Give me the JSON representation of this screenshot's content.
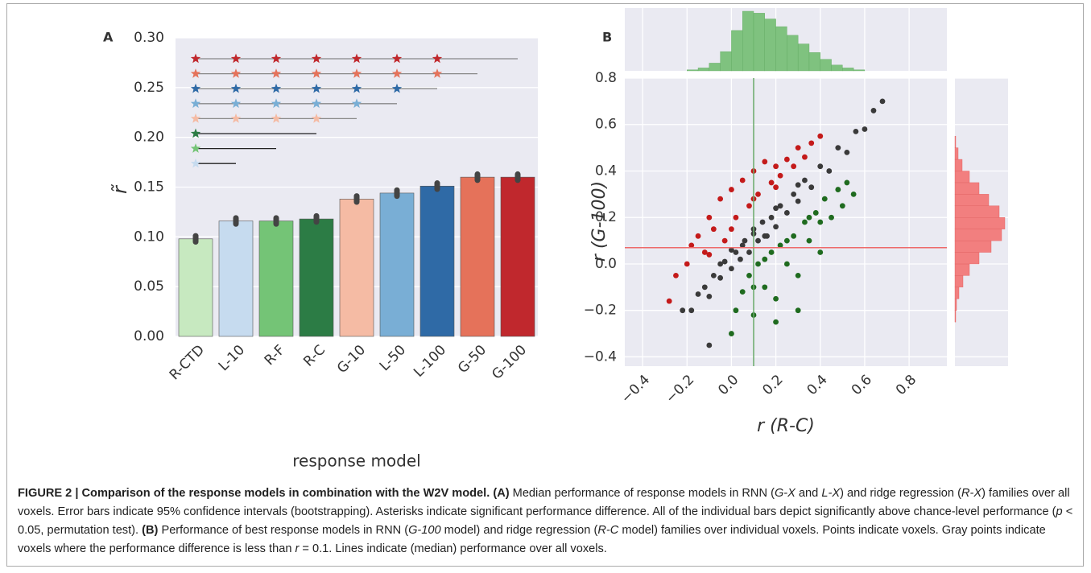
{
  "chart_data": [
    {
      "type": "bar",
      "panel_label": "A",
      "xlabel": "response model",
      "ylabel": "r̃",
      "categories": [
        "R-CTD",
        "L-10",
        "R-F",
        "R-C",
        "G-10",
        "L-50",
        "L-100",
        "G-50",
        "G-100"
      ],
      "values": [
        0.098,
        0.116,
        0.116,
        0.118,
        0.138,
        0.144,
        0.151,
        0.16,
        0.16
      ],
      "errors": [
        0.003,
        0.003,
        0.003,
        0.003,
        0.003,
        0.003,
        0.003,
        0.003,
        0.003
      ],
      "colors": [
        "#c7e9c0",
        "#c6dbef",
        "#74c476",
        "#2c7c45",
        "#f5bba4",
        "#79aed5",
        "#2f6aa6",
        "#e5725a",
        "#c0282d"
      ],
      "ylim": [
        0,
        0.3
      ],
      "yticks": [
        {
          "value": 0,
          "label": "0.00"
        },
        0.05,
        {
          "value": 0.1,
          "label": "0.10"
        },
        0.15,
        {
          "value": 0.2,
          "label": "0.20"
        },
        0.25,
        {
          "value": 0.3,
          "label": "0.30"
        }
      ],
      "grid": true
    },
    {
      "type": "scatter",
      "panel_label": "B",
      "xlabel": "r (R-C)",
      "ylabel": "r (G-100)",
      "series": [
        {
          "color": "#3a3a3a",
          "x": [
            -0.22,
            -0.18,
            -0.15,
            -0.12,
            -0.1,
            -0.08,
            -0.05,
            -0.03,
            0,
            0.02,
            0.04,
            0.06,
            0.08,
            0.1,
            0.12,
            0.14,
            0.16,
            0.18,
            0.2,
            0.22,
            0.25,
            0.28,
            0.3,
            0.33,
            0.36,
            0.4,
            0.44,
            0.48,
            0.52,
            0.56,
            0.6,
            0.64,
            0.68,
            0.05,
            0.1,
            0.15,
            0.2,
            0.0,
            -0.05,
            0.3,
            -0.1
          ],
          "values": [
            -0.2,
            -0.2,
            -0.13,
            -0.1,
            -0.14,
            -0.05,
            -0.06,
            0.01,
            -0.02,
            0.05,
            0.02,
            0.1,
            0.05,
            0.13,
            0.1,
            0.18,
            0.12,
            0.2,
            0.16,
            0.25,
            0.22,
            0.3,
            0.27,
            0.36,
            0.33,
            0.42,
            0.4,
            0.5,
            0.48,
            0.57,
            0.58,
            0.66,
            0.7,
            0.08,
            0.15,
            0.12,
            0.24,
            0.06,
            0.0,
            0.34,
            -0.35
          ]
        },
        {
          "color": "#c41a1a",
          "x": [
            -0.28,
            -0.25,
            -0.2,
            -0.18,
            -0.15,
            -0.12,
            -0.1,
            -0.08,
            -0.05,
            -0.03,
            0,
            0.02,
            0.05,
            0.08,
            0.1,
            0.12,
            0.15,
            0.18,
            0.2,
            0.22,
            0.25,
            0.28,
            0.3,
            0.33,
            0.36,
            0.4,
            -0.1,
            0.0,
            0.1,
            0.2
          ],
          "values": [
            -0.16,
            -0.05,
            0.0,
            0.08,
            0.12,
            0.05,
            0.2,
            0.15,
            0.28,
            0.1,
            0.32,
            0.2,
            0.36,
            0.25,
            0.4,
            0.3,
            0.44,
            0.35,
            0.42,
            0.38,
            0.45,
            0.42,
            0.5,
            0.46,
            0.52,
            0.55,
            0.04,
            0.15,
            0.28,
            0.33
          ]
        },
        {
          "color": "#1f6b1f",
          "x": [
            0.0,
            0.02,
            0.05,
            0.08,
            0.1,
            0.12,
            0.15,
            0.18,
            0.2,
            0.22,
            0.25,
            0.28,
            0.3,
            0.33,
            0.35,
            0.38,
            0.4,
            0.42,
            0.45,
            0.48,
            0.5,
            0.52,
            0.55,
            0.3,
            0.2,
            0.1,
            0.4,
            0.15,
            0.25,
            0.35
          ],
          "values": [
            -0.3,
            -0.2,
            -0.12,
            -0.05,
            -0.22,
            0.0,
            -0.1,
            0.05,
            -0.15,
            0.08,
            0.0,
            0.12,
            -0.05,
            0.18,
            0.1,
            0.22,
            0.05,
            0.28,
            0.2,
            0.32,
            0.25,
            0.35,
            0.3,
            -0.2,
            -0.25,
            -0.1,
            0.18,
            0.02,
            0.1,
            0.2
          ]
        }
      ],
      "vline": {
        "value": 0.1,
        "color": "#6aaa6a"
      },
      "hline": {
        "value": 0.07,
        "color": "#ee6a6a"
      },
      "xlim": [
        -0.48,
        0.97
      ],
      "ylim": [
        -0.44,
        0.8
      ],
      "xticks": [
        {
          "value": -0.4,
          "label": "−0.4"
        },
        {
          "value": -0.2,
          "label": "−0.2"
        },
        {
          "value": 0,
          "label": "0.0"
        },
        0.2,
        0.4,
        0.6,
        0.8
      ],
      "yticks": [
        {
          "value": -0.4,
          "label": "−0.4"
        },
        {
          "value": -0.2,
          "label": "−0.2"
        },
        {
          "value": 0,
          "label": "0.0"
        },
        0.2,
        0.4,
        0.6,
        0.8
      ],
      "grid": true,
      "x_hist": {
        "color": "#7fc27f",
        "bins": [
          -0.2,
          -0.15,
          -0.1,
          -0.05,
          0,
          0.05,
          0.1,
          0.15,
          0.2,
          0.25,
          0.3,
          0.35,
          0.4,
          0.45,
          0.5,
          0.55,
          0.6
        ],
        "counts": [
          1,
          3,
          8,
          20,
          42,
          62,
          60,
          54,
          46,
          37,
          28,
          19,
          12,
          6,
          3,
          1
        ]
      },
      "y_hist": {
        "color": "#f27f7f",
        "bins": [
          -0.25,
          -0.2,
          -0.15,
          -0.1,
          -0.05,
          0,
          0.05,
          0.1,
          0.15,
          0.2,
          0.25,
          0.3,
          0.35,
          0.4,
          0.45,
          0.5,
          0.55
        ],
        "counts": [
          1,
          2,
          5,
          10,
          18,
          30,
          45,
          58,
          62,
          55,
          42,
          30,
          18,
          9,
          4,
          1
        ]
      }
    }
  ],
  "caption": {
    "parts": [
      "FIGURE 2 | Comparison of the response models in combination with the W2V model.",
      " (A)",
      " Median performance of response models in RNN (",
      "G-X",
      " and ",
      "L-X",
      ") and ridge regression (",
      "R-X",
      ") families over all voxels. Error bars indicate 95% confidence intervals (bootstrapping). Asterisks indicate significant performance difference. All of the individual bars depict significantly above chance-level performance (",
      "p",
      " < 0.05, permutation test). ",
      "(B)",
      " Performance of best response models in RNN (",
      "G-100",
      " model) and ridge regression (",
      "R-C",
      " model) families over individual voxels. Points indicate voxels. Gray points indicate voxels where the performance difference is less than ",
      "r",
      " = 0.1. Lines indicate (median) performance over all voxels."
    ]
  }
}
